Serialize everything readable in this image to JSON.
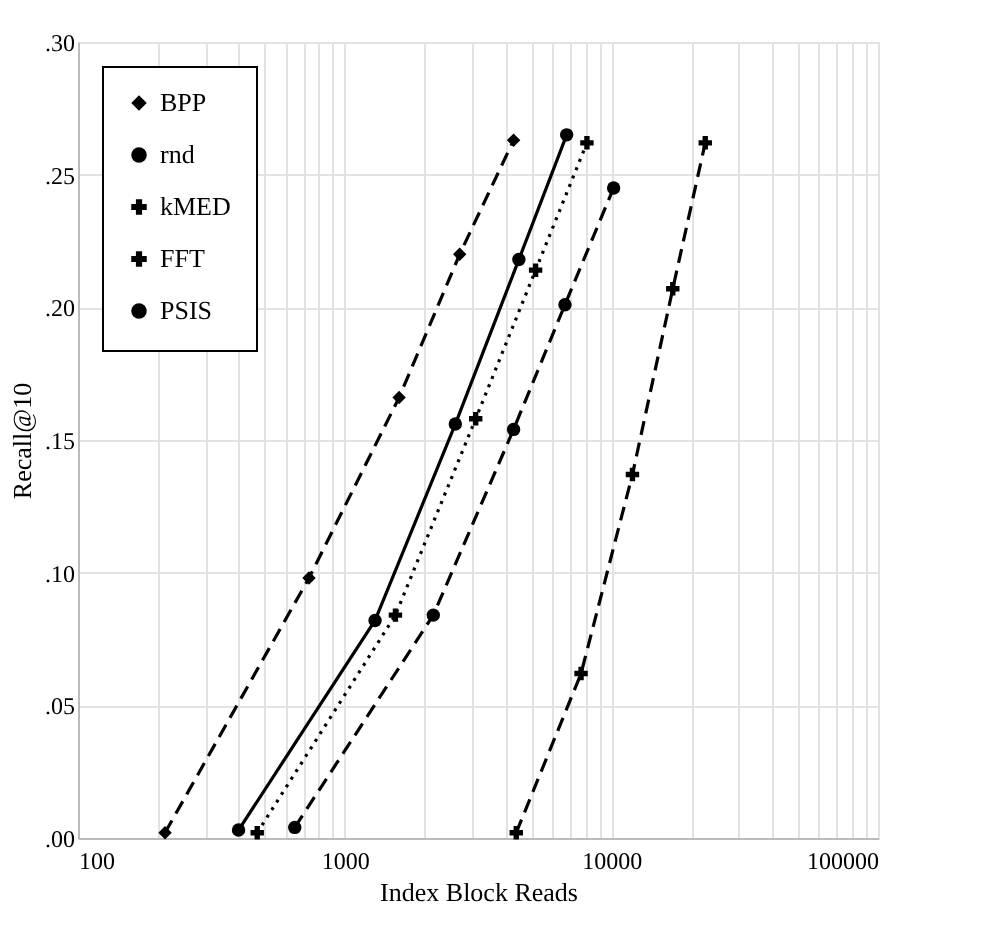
{
  "chart_data": {
    "type": "line",
    "xlabel": "Index Block Reads",
    "ylabel": "Recall@10",
    "log": "x",
    "xlim": [
      100,
      100000
    ],
    "xticks": [
      100,
      1000,
      10000,
      100000
    ],
    "ylim": [
      0,
      0.3
    ],
    "yticks": [
      {
        "value": 0,
        "label": ".00"
      },
      {
        "value": 0.05,
        "label": ".05"
      },
      {
        "value": 0.1,
        "label": ".10"
      },
      {
        "value": 0.15,
        "label": ".15"
      },
      {
        "value": 0.2,
        "label": ".20"
      },
      {
        "value": 0.25,
        "label": ".25"
      },
      {
        "value": 0.3,
        "label": ".30"
      }
    ],
    "grid": true,
    "legend": "top left",
    "series": [
      {
        "name": "BPP",
        "color": "#000000",
        "marker": "diamond",
        "line_style": "dashed",
        "x": [
          212,
          735,
          1600,
          2700,
          4300
        ],
        "values": [
          0.002,
          0.098,
          0.166,
          0.22,
          0.263
        ]
      },
      {
        "name": "rnd",
        "color": "#000000",
        "marker": "circle",
        "line_style": "solid",
        "x": [
          400,
          1300,
          2600,
          4500,
          6800
        ],
        "values": [
          0.003,
          0.082,
          0.156,
          0.218,
          0.265
        ]
      },
      {
        "name": "kMED",
        "color": "#000000",
        "marker": "cross",
        "line_style": "dotted",
        "x": [
          470,
          1550,
          3100,
          5200,
          8100
        ],
        "values": [
          0.002,
          0.084,
          0.158,
          0.214,
          0.262
        ]
      },
      {
        "name": "FFT",
        "color": "#000000",
        "marker": "cross",
        "line_style": "dashed",
        "x": [
          4400,
          7700,
          12000,
          17000,
          22500
        ],
        "values": [
          0.002,
          0.062,
          0.137,
          0.207,
          0.262
        ]
      },
      {
        "name": "PSIS",
        "color": "#000000",
        "marker": "circle",
        "line_style": "dashed",
        "x": [
          650,
          2150,
          4300,
          6700,
          10200
        ],
        "values": [
          0.004,
          0.084,
          0.154,
          0.201,
          0.245
        ]
      }
    ]
  }
}
